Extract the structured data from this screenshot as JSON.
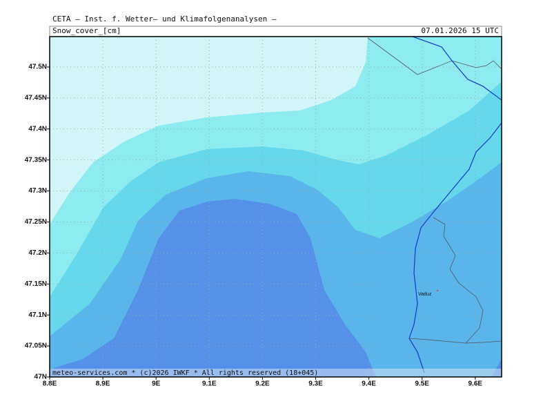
{
  "header": {
    "title": "CETA – Inst. f. Wetter– und Klimafolgenanalysen –",
    "variable": "Snow_cover_[cm]",
    "time": "07.01.2026 15 UTC"
  },
  "map": {
    "x_labels": [
      "8.8E",
      "8.9E",
      "9E",
      "9.1E",
      "9.2E",
      "9.3E",
      "9.4E",
      "9.5E",
      "9.6E"
    ],
    "y_labels": [
      "47N",
      "47.05N",
      "47.1N",
      "47.15N",
      "47.2N",
      "47.25N",
      "47.3N",
      "47.35N",
      "47.4N",
      "47.45N",
      "47.5N"
    ],
    "place": "Vaduz"
  },
  "footer": "meteo-services.com * (c)2026 IWKF * All rights reserved (18+045)"
}
